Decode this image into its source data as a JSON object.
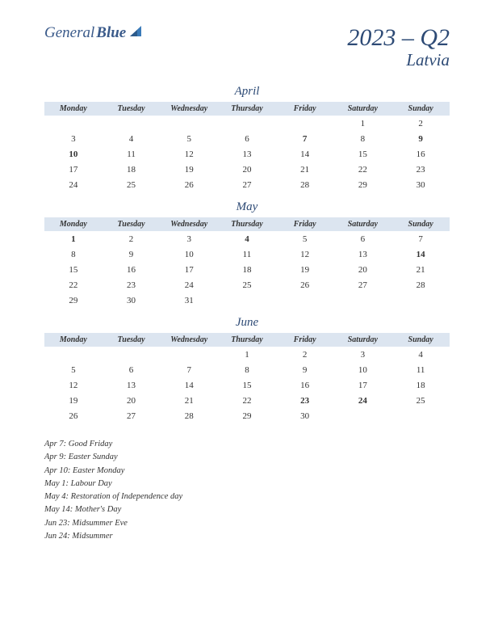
{
  "logo": {
    "part1": "General",
    "part2": "Blue"
  },
  "title": {
    "quarter": "2023 – Q2",
    "country": "Latvia"
  },
  "weekdays": [
    "Monday",
    "Tuesday",
    "Wednesday",
    "Thursday",
    "Friday",
    "Saturday",
    "Sunday"
  ],
  "colors": {
    "header_bg": "#dce5f0",
    "title_color": "#2d4a75",
    "holiday_color": "#b82020",
    "text_color": "#333333",
    "background": "#ffffff"
  },
  "months": [
    {
      "name": "April",
      "weeks": [
        [
          null,
          null,
          null,
          null,
          null,
          {
            "d": "1"
          },
          {
            "d": "2"
          }
        ],
        [
          {
            "d": "3"
          },
          {
            "d": "4"
          },
          {
            "d": "5"
          },
          {
            "d": "6"
          },
          {
            "d": "7",
            "h": true
          },
          {
            "d": "8"
          },
          {
            "d": "9",
            "h": true
          }
        ],
        [
          {
            "d": "10",
            "h": true
          },
          {
            "d": "11"
          },
          {
            "d": "12"
          },
          {
            "d": "13"
          },
          {
            "d": "14"
          },
          {
            "d": "15"
          },
          {
            "d": "16"
          }
        ],
        [
          {
            "d": "17"
          },
          {
            "d": "18"
          },
          {
            "d": "19"
          },
          {
            "d": "20"
          },
          {
            "d": "21"
          },
          {
            "d": "22"
          },
          {
            "d": "23"
          }
        ],
        [
          {
            "d": "24"
          },
          {
            "d": "25"
          },
          {
            "d": "26"
          },
          {
            "d": "27"
          },
          {
            "d": "28"
          },
          {
            "d": "29"
          },
          {
            "d": "30"
          }
        ]
      ]
    },
    {
      "name": "May",
      "weeks": [
        [
          {
            "d": "1",
            "h": true
          },
          {
            "d": "2"
          },
          {
            "d": "3"
          },
          {
            "d": "4",
            "h": true
          },
          {
            "d": "5"
          },
          {
            "d": "6"
          },
          {
            "d": "7"
          }
        ],
        [
          {
            "d": "8"
          },
          {
            "d": "9"
          },
          {
            "d": "10"
          },
          {
            "d": "11"
          },
          {
            "d": "12"
          },
          {
            "d": "13"
          },
          {
            "d": "14",
            "h": true
          }
        ],
        [
          {
            "d": "15"
          },
          {
            "d": "16"
          },
          {
            "d": "17"
          },
          {
            "d": "18"
          },
          {
            "d": "19"
          },
          {
            "d": "20"
          },
          {
            "d": "21"
          }
        ],
        [
          {
            "d": "22"
          },
          {
            "d": "23"
          },
          {
            "d": "24"
          },
          {
            "d": "25"
          },
          {
            "d": "26"
          },
          {
            "d": "27"
          },
          {
            "d": "28"
          }
        ],
        [
          {
            "d": "29"
          },
          {
            "d": "30"
          },
          {
            "d": "31"
          },
          null,
          null,
          null,
          null
        ]
      ]
    },
    {
      "name": "June",
      "weeks": [
        [
          null,
          null,
          null,
          {
            "d": "1"
          },
          {
            "d": "2"
          },
          {
            "d": "3"
          },
          {
            "d": "4"
          }
        ],
        [
          {
            "d": "5"
          },
          {
            "d": "6"
          },
          {
            "d": "7"
          },
          {
            "d": "8"
          },
          {
            "d": "9"
          },
          {
            "d": "10"
          },
          {
            "d": "11"
          }
        ],
        [
          {
            "d": "12"
          },
          {
            "d": "13"
          },
          {
            "d": "14"
          },
          {
            "d": "15"
          },
          {
            "d": "16"
          },
          {
            "d": "17"
          },
          {
            "d": "18"
          }
        ],
        [
          {
            "d": "19"
          },
          {
            "d": "20"
          },
          {
            "d": "21"
          },
          {
            "d": "22"
          },
          {
            "d": "23",
            "h": true
          },
          {
            "d": "24",
            "h": true
          },
          {
            "d": "25"
          }
        ],
        [
          {
            "d": "26"
          },
          {
            "d": "27"
          },
          {
            "d": "28"
          },
          {
            "d": "29"
          },
          {
            "d": "30"
          },
          null,
          null
        ]
      ]
    }
  ],
  "holidays": [
    "Apr 7: Good Friday",
    "Apr 9: Easter Sunday",
    "Apr 10: Easter Monday",
    "May 1: Labour Day",
    "May 4: Restoration of Independence day",
    "May 14: Mother's Day",
    "Jun 23: Midsummer Eve",
    "Jun 24: Midsummer"
  ]
}
